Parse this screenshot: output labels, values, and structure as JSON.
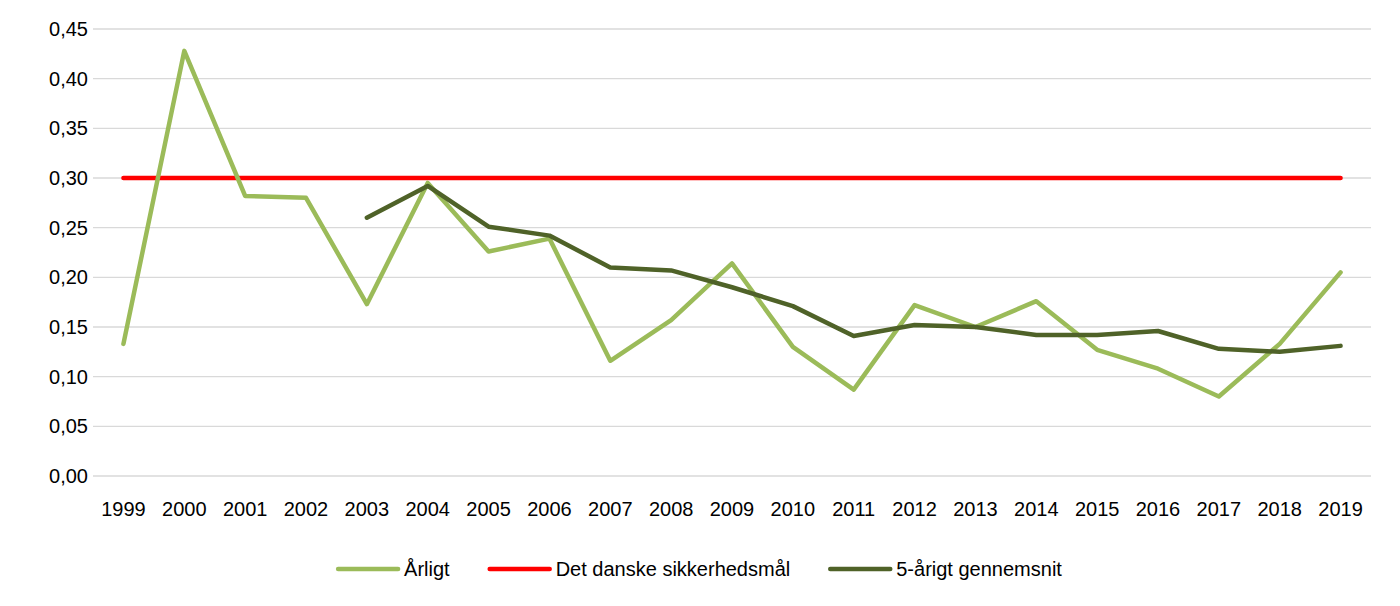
{
  "chart_data": {
    "type": "line",
    "categories": [
      "1999",
      "2000",
      "2001",
      "2002",
      "2003",
      "2004",
      "2005",
      "2006",
      "2007",
      "2008",
      "2009",
      "2010",
      "2011",
      "2012",
      "2013",
      "2014",
      "2015",
      "2016",
      "2017",
      "2018",
      "2019"
    ],
    "series": [
      {
        "name": "Årligt",
        "color": "#9bbb59",
        "values": [
          0.133,
          0.428,
          0.282,
          0.28,
          0.173,
          0.295,
          0.226,
          0.239,
          0.116,
          0.157,
          0.214,
          0.13,
          0.087,
          0.172,
          0.15,
          0.176,
          0.127,
          0.108,
          0.08,
          0.133,
          0.205
        ]
      },
      {
        "name": "Det danske sikkerhedsmål",
        "color": "#ff0000",
        "values": [
          0.3,
          0.3,
          0.3,
          0.3,
          0.3,
          0.3,
          0.3,
          0.3,
          0.3,
          0.3,
          0.3,
          0.3,
          0.3,
          0.3,
          0.3,
          0.3,
          0.3,
          0.3,
          0.3,
          0.3,
          0.3
        ]
      },
      {
        "name": "5-årigt gennemsnit",
        "color": "#4f6228",
        "values": [
          null,
          null,
          null,
          null,
          0.26,
          0.292,
          0.251,
          0.242,
          0.21,
          0.207,
          0.19,
          0.171,
          0.141,
          0.152,
          0.15,
          0.142,
          0.142,
          0.146,
          0.128,
          0.125,
          0.131
        ]
      }
    ],
    "ylim": [
      0,
      0.45
    ],
    "yticks": [
      {
        "value": 0,
        "label": "0,00"
      },
      {
        "value": 0.05,
        "label": "0,05"
      },
      {
        "value": 0.1,
        "label": "0,10"
      },
      {
        "value": 0.15,
        "label": "0,15"
      },
      {
        "value": 0.2,
        "label": "0,20"
      },
      {
        "value": 0.25,
        "label": "0,25"
      },
      {
        "value": 0.3,
        "label": "0,30"
      },
      {
        "value": 0.35,
        "label": "0,35"
      },
      {
        "value": 0.4,
        "label": "0,40"
      },
      {
        "value": 0.45,
        "label": "0,45"
      }
    ],
    "grid": true,
    "legend": "bottom"
  }
}
